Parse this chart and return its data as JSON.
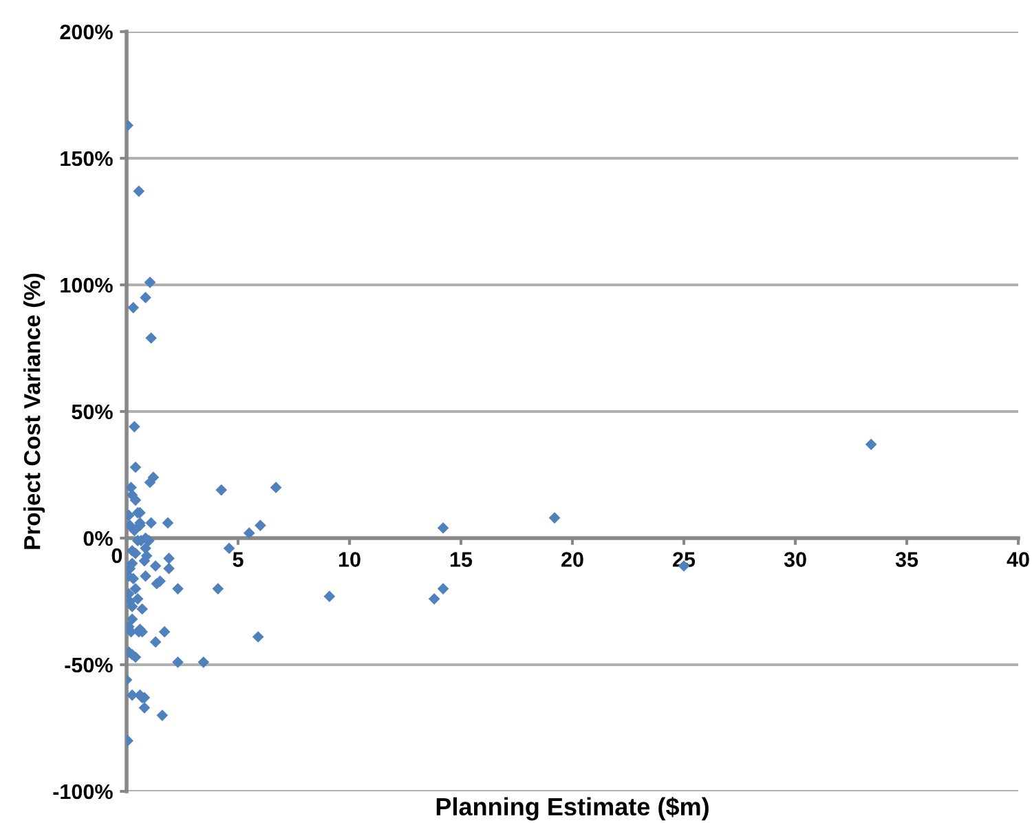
{
  "chart_data": {
    "type": "scatter",
    "xlabel": "Planning Estimate ($m)",
    "ylabel": "Project Cost Variance (%)",
    "xlim": [
      0,
      40
    ],
    "xticks": [
      0,
      5,
      10,
      15,
      20,
      25,
      30,
      35,
      40
    ],
    "ylim": [
      -100,
      200
    ],
    "yticks": [
      {
        "value": -100,
        "label": "-100%"
      },
      {
        "value": -50,
        "label": "-50%"
      },
      {
        "value": 0,
        "label": "0%"
      },
      {
        "value": 50,
        "label": "50%"
      },
      {
        "value": 100,
        "label": "100%"
      },
      {
        "value": 150,
        "label": "150%"
      },
      {
        "value": 200,
        "label": "200%"
      }
    ],
    "grid": "y",
    "marker": "diamond",
    "series": [
      {
        "color": "#4f81bd",
        "x": [
          0.05,
          0.55,
          1.05,
          0.85,
          0.3,
          1.1,
          0.35,
          0.4,
          1.2,
          1.05,
          0.2,
          0.25,
          0.4,
          0.6,
          0.1,
          0.6,
          1.1,
          1.85,
          0.5,
          0.15,
          0.6,
          0.85,
          0.5,
          0.65,
          1.0,
          0.25,
          0.4,
          0.85,
          0.8,
          0.9,
          1.9,
          1.3,
          1.9,
          0.85,
          1.35,
          1.5,
          2.3,
          0.4,
          0.1,
          0.5,
          0.15,
          0.25,
          0.7,
          0.25,
          0.1,
          0.2,
          0.55,
          0.6,
          0.7,
          1.7,
          1.3,
          0.1,
          0.25,
          0.4,
          0.0,
          0.25,
          0.6,
          0.7,
          0.8,
          0.8,
          1.6,
          0.05,
          2.3,
          3.45,
          4.25,
          6.7,
          6.0,
          5.5,
          4.6,
          14.2,
          19.2,
          25.0,
          33.4,
          4.1,
          9.1,
          13.8,
          14.2,
          5.9,
          0.35,
          0.25,
          0.15,
          0.1,
          0.3
        ],
        "values": [
          163,
          137,
          101,
          95,
          91,
          79,
          44,
          28,
          24,
          22,
          20,
          17,
          15,
          10,
          9,
          6,
          6,
          6,
          10,
          5,
          5,
          0,
          -1,
          -1,
          -1,
          -5,
          -6,
          -4,
          -9,
          -7,
          -8,
          -11,
          -12,
          -15,
          -18,
          -17,
          -20,
          -20,
          -22,
          -24,
          -25,
          -27,
          -28,
          -32,
          -35,
          -37,
          -37,
          -36,
          -37,
          -37,
          -41,
          -45,
          -46,
          -47,
          -56,
          -62,
          -62,
          -63,
          -63,
          -67,
          -70,
          -80,
          -49,
          -49,
          19,
          20,
          5,
          2,
          -4,
          4,
          8,
          -11,
          37,
          -20,
          -23,
          -24,
          -20,
          -39,
          3,
          -10,
          -12,
          -15,
          -16
        ]
      }
    ]
  }
}
